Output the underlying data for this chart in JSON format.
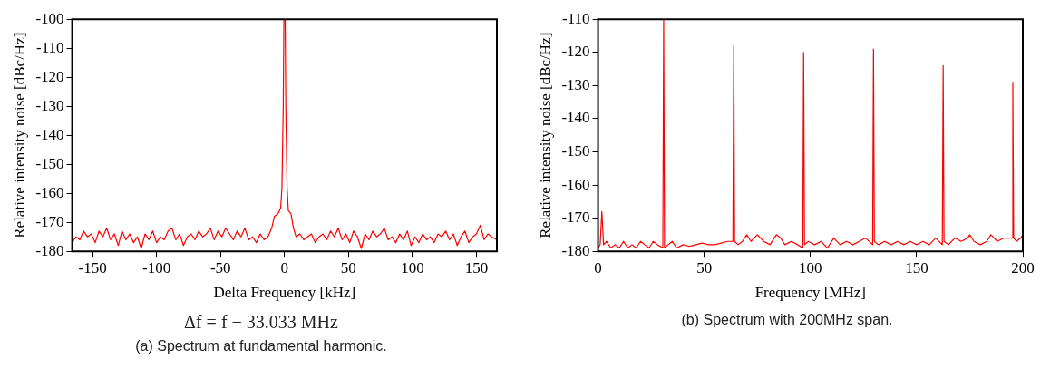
{
  "chart_data": [
    {
      "type": "line",
      "xlabel": "Delta Frequency [kHz]",
      "ylabel": "Relative intensity noise [dBc/Hz]",
      "xlim": [
        -166,
        166
      ],
      "ylim": [
        -180,
        -100
      ],
      "xticks": [
        -150,
        -100,
        -50,
        0,
        50,
        100,
        150
      ],
      "yticks": [
        -180,
        -170,
        -160,
        -150,
        -140,
        -130,
        -120,
        -110,
        -100
      ],
      "grid": false,
      "legend": false,
      "marker": "none",
      "line_style": "solid",
      "annotations": [
        "Δf = f − 33.033 MHz",
        "(a) Spectrum at fundamental harmonic."
      ],
      "series": [
        {
          "color": "#ff0000",
          "x": [
            -166,
            -163,
            -160,
            -157,
            -154,
            -151,
            -148,
            -145,
            -142,
            -139,
            -136,
            -133,
            -130,
            -127,
            -124,
            -121,
            -118,
            -115,
            -112,
            -109,
            -106,
            -103,
            -100,
            -97,
            -94,
            -91,
            -88,
            -85,
            -82,
            -79,
            -76,
            -73,
            -70,
            -67,
            -64,
            -61,
            -58,
            -55,
            -52,
            -49,
            -46,
            -43,
            -40,
            -37,
            -34,
            -31,
            -28,
            -25,
            -22,
            -19,
            -16,
            -13,
            -10,
            -8,
            -5,
            -3,
            -2,
            -1,
            -0.5,
            0.5,
            1,
            2,
            3,
            5,
            7,
            9,
            12,
            15,
            18,
            21,
            24,
            27,
            30,
            33,
            36,
            39,
            42,
            45,
            48,
            51,
            54,
            57,
            60,
            63,
            66,
            69,
            72,
            75,
            78,
            81,
            84,
            87,
            90,
            93,
            96,
            99,
            102,
            105,
            108,
            111,
            114,
            117,
            120,
            123,
            126,
            129,
            132,
            135,
            138,
            141,
            144,
            147,
            150,
            153,
            156,
            159,
            162,
            166
          ],
          "values": [
            -177,
            -175,
            -176,
            -173,
            -175,
            -174,
            -177,
            -173,
            -175,
            -172,
            -176,
            -174,
            -178,
            -173,
            -176,
            -174,
            -177,
            -175,
            -179,
            -174,
            -176,
            -173,
            -177,
            -175,
            -176,
            -173,
            -172,
            -176,
            -174,
            -178,
            -175,
            -174,
            -176,
            -173,
            -175,
            -174,
            -172,
            -176,
            -173,
            -175,
            -172,
            -174,
            -176,
            -173,
            -175,
            -172,
            -176,
            -175,
            -177,
            -174,
            -176,
            -175,
            -172,
            -168,
            -167,
            -165,
            -158,
            -130,
            -100,
            -100,
            -130,
            -158,
            -166,
            -167,
            -172,
            -175,
            -174,
            -176,
            -175,
            -174,
            -177,
            -175,
            -174,
            -176,
            -173,
            -175,
            -172,
            -176,
            -174,
            -177,
            -173,
            -175,
            -179,
            -174,
            -176,
            -173,
            -175,
            -174,
            -172,
            -176,
            -175,
            -177,
            -174,
            -176,
            -173,
            -178,
            -175,
            -177,
            -174,
            -176,
            -175,
            -177,
            -174,
            -175,
            -173,
            -176,
            -174,
            -178,
            -175,
            -173,
            -177,
            -175,
            -174,
            -171,
            -176,
            -174,
            -175,
            -176
          ]
        }
      ]
    },
    {
      "type": "line",
      "xlabel": "Frequency [MHz]",
      "ylabel": "Relative intensity noise [dBc/Hz]",
      "xlim": [
        0,
        200
      ],
      "ylim": [
        -180,
        -110
      ],
      "xticks": [
        0,
        50,
        100,
        150,
        200
      ],
      "yticks": [
        -180,
        -170,
        -160,
        -150,
        -140,
        -130,
        -120,
        -110
      ],
      "grid": false,
      "legend": false,
      "marker": "none",
      "line_style": "solid",
      "annotations": [
        "(b) Spectrum with 200MHz span."
      ],
      "series": [
        {
          "color": "#ff0000",
          "x": [
            0,
            1,
            1.8,
            2.6,
            4,
            6,
            8,
            10,
            12,
            14,
            16,
            18,
            20,
            22,
            24,
            26,
            28,
            30.5,
            30.9,
            31.3,
            33,
            35,
            37,
            40,
            43,
            46,
            49,
            52,
            55,
            58,
            61,
            63.5,
            63.9,
            64.3,
            66,
            68,
            70,
            72,
            75,
            78,
            81,
            84,
            86,
            88,
            91,
            94,
            96.4,
            96.8,
            97.2,
            99,
            102,
            105,
            108,
            111,
            114,
            117,
            120,
            123,
            126,
            129.3,
            129.7,
            130.1,
            132,
            135,
            138,
            141,
            144,
            147,
            150,
            153,
            156,
            159,
            162.1,
            162.5,
            162.9,
            165,
            168,
            171,
            174,
            175,
            177,
            180,
            183,
            185,
            188,
            191,
            194.9,
            195.3,
            195.7,
            197,
            199,
            200
          ],
          "values": [
            -179,
            -178,
            -168,
            -178,
            -177,
            -179,
            -178,
            -179,
            -177,
            -179,
            -178,
            -179,
            -177,
            -178,
            -179,
            -177,
            -178,
            -179,
            -110,
            -179,
            -178,
            -177,
            -179,
            -178,
            -178.5,
            -178,
            -177.5,
            -178,
            -178,
            -177.5,
            -177,
            -177,
            -118,
            -177,
            -178,
            -177,
            -175,
            -177,
            -175,
            -177,
            -178,
            -175,
            -176,
            -178,
            -177,
            -178,
            -179,
            -120,
            -178,
            -177,
            -178,
            -177,
            -179,
            -176,
            -178,
            -177,
            -178,
            -177,
            -176,
            -178,
            -119,
            -177,
            -178,
            -177,
            -178,
            -177,
            -178,
            -177,
            -178,
            -177,
            -178,
            -176,
            -178,
            -124,
            -177,
            -178,
            -176,
            -177,
            -176,
            -175,
            -177,
            -178,
            -177,
            -175,
            -177,
            -176,
            -176,
            -129,
            -176,
            -177,
            -176,
            -175
          ]
        }
      ]
    }
  ]
}
